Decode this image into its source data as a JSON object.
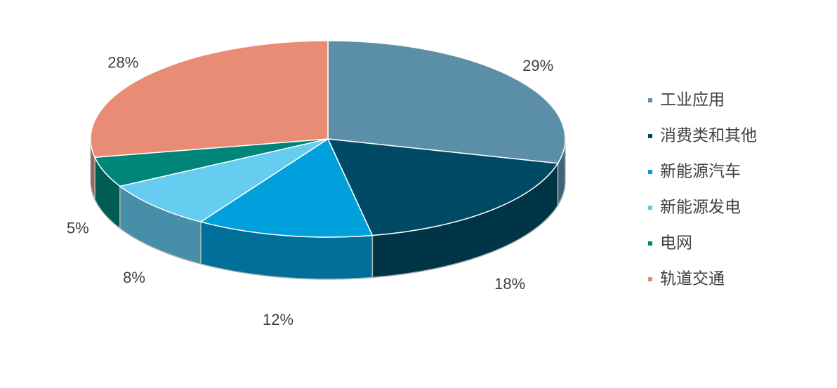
{
  "chart_data": {
    "type": "pie3d",
    "categories": [
      "工业应用",
      "消费类和其他",
      "新能源汽车",
      "新能源发电",
      "电网",
      "轨道交通"
    ],
    "values": [
      29,
      18,
      12,
      8,
      5,
      28
    ],
    "value_labels": [
      "29%",
      "18%",
      "12%",
      "8%",
      "5%",
      "28%"
    ],
    "colors": [
      "#5b8fa8",
      "#004a66",
      "#00a0dc",
      "#66ccf0",
      "#00857a",
      "#e88c75"
    ],
    "legend": "right"
  }
}
